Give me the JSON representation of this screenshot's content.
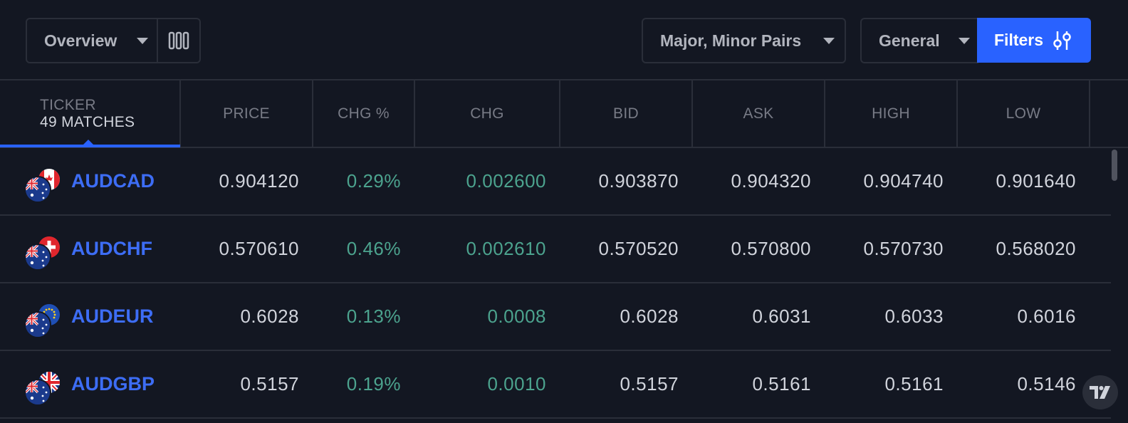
{
  "toolbar": {
    "overview_label": "Overview",
    "columns_icon": "columns-icon",
    "pairs_label": "Major, Minor Pairs",
    "general_label": "General",
    "filters_label": "Filters",
    "filters_icon": "sliders-icon"
  },
  "table": {
    "headers": {
      "ticker": "TICKER",
      "matches": "49 MATCHES",
      "price": "PRICE",
      "chg_pct": "CHG %",
      "chg": "CHG",
      "bid": "BID",
      "ask": "ASK",
      "high": "HIGH",
      "low": "LOW"
    },
    "rows": [
      {
        "symbol": "AUDCAD",
        "price": "0.904120",
        "chg_pct": "0.29%",
        "chg": "0.002600",
        "bid": "0.903870",
        "ask": "0.904320",
        "high": "0.904740",
        "low": "0.901640",
        "flag": "canada-flag-icon"
      },
      {
        "symbol": "AUDCHF",
        "price": "0.570610",
        "chg_pct": "0.46%",
        "chg": "0.002610",
        "bid": "0.570520",
        "ask": "0.570800",
        "high": "0.570730",
        "low": "0.568020",
        "flag": "switzerland-flag-icon"
      },
      {
        "symbol": "AUDEUR",
        "price": "0.6028",
        "chg_pct": "0.13%",
        "chg": "0.0008",
        "bid": "0.6028",
        "ask": "0.6031",
        "high": "0.6033",
        "low": "0.6016",
        "flag": "eu-flag-icon"
      },
      {
        "symbol": "AUDGBP",
        "price": "0.5157",
        "chg_pct": "0.19%",
        "chg": "0.0010",
        "bid": "0.5157",
        "ask": "0.5161",
        "high": "0.5161",
        "low": "0.5146",
        "flag": "uk-flag-icon"
      }
    ]
  },
  "colors": {
    "background": "#131722",
    "accent": "#2962ff",
    "symbol": "#3d6df5",
    "positive": "#4ca38e",
    "border": "#2a2e39"
  },
  "brand_icon": "tradingview-logo-icon"
}
